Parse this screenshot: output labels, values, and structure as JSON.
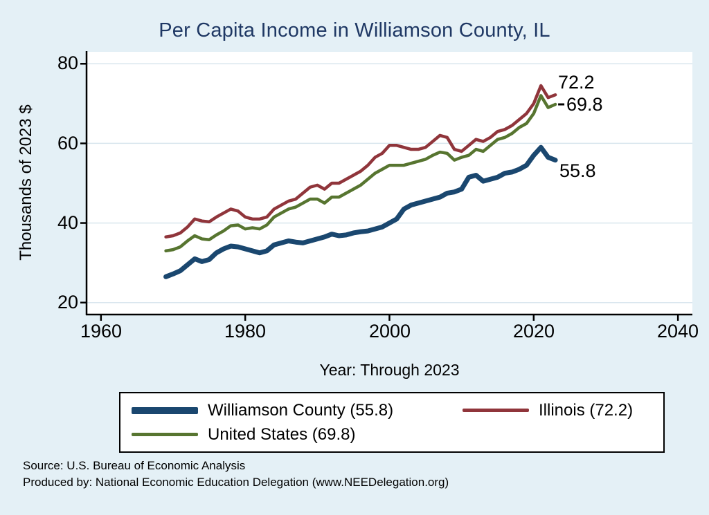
{
  "title": "Per Capita Income in Williamson County, IL",
  "axes": {
    "y_label": "Thousands of 2023 $",
    "x_label": "Year: Through 2023",
    "y_ticks": [
      "80",
      "60",
      "40",
      "20"
    ],
    "x_ticks": [
      "1960",
      "1980",
      "2000",
      "2020",
      "2040"
    ]
  },
  "end_labels": {
    "illinois": "72.2",
    "united_states": "69.8",
    "williamson": "55.8"
  },
  "legend": {
    "items": [
      {
        "id": "williamson",
        "label": "Williamson County (55.8)",
        "color": "#1a476f",
        "swatch_height": 10
      },
      {
        "id": "illinois",
        "label": "Illinois (72.2)",
        "color": "#90353b",
        "swatch_height": 5
      },
      {
        "id": "united_states",
        "label": "United States (69.8)",
        "color": "#577530",
        "swatch_height": 5
      }
    ]
  },
  "footer": {
    "source": "Source: U.S. Bureau of Economic Analysis",
    "produced_by": "Produced by: National Economic Education Delegation (www.NEEDelegation.org)"
  },
  "colors": {
    "background": "#e4f0f6",
    "plot_background": "#ffffff",
    "gridline": "#d9e6ee",
    "axis": "#000000",
    "title": "#1f3864",
    "williamson": "#1a476f",
    "illinois": "#90353b",
    "united_states": "#577530"
  },
  "chart_data": {
    "type": "line",
    "title": "Per Capita Income in Williamson County, IL",
    "xlabel": "Year: Through 2023",
    "ylabel": "Thousands of 2023 $",
    "xlim": [
      1958,
      2042
    ],
    "ylim": [
      17,
      83
    ],
    "x_ticks": [
      1960,
      1980,
      2000,
      2020,
      2040
    ],
    "y_ticks": [
      20,
      40,
      60,
      80
    ],
    "grid": "horizontal",
    "legend_position": "bottom",
    "x": [
      1969,
      1970,
      1971,
      1972,
      1973,
      1974,
      1975,
      1976,
      1977,
      1978,
      1979,
      1980,
      1981,
      1982,
      1983,
      1984,
      1985,
      1986,
      1987,
      1988,
      1989,
      1990,
      1991,
      1992,
      1993,
      1994,
      1995,
      1996,
      1997,
      1998,
      1999,
      2000,
      2001,
      2002,
      2003,
      2004,
      2005,
      2006,
      2007,
      2008,
      2009,
      2010,
      2011,
      2012,
      2013,
      2014,
      2015,
      2016,
      2017,
      2018,
      2019,
      2020,
      2021,
      2022,
      2023
    ],
    "series": [
      {
        "id": "illinois",
        "name": "Illinois",
        "color": "#90353b",
        "width": 4.5,
        "final_value": 72.2,
        "values": [
          36.5,
          36.8,
          37.5,
          39.0,
          41.0,
          40.5,
          40.3,
          41.5,
          42.5,
          43.5,
          43.0,
          41.5,
          41.0,
          41.0,
          41.5,
          43.5,
          44.5,
          45.5,
          46.0,
          47.5,
          49.0,
          49.5,
          48.5,
          50.0,
          50.0,
          51.0,
          52.0,
          53.0,
          54.5,
          56.5,
          57.5,
          59.5,
          59.5,
          59.0,
          58.5,
          58.5,
          59.0,
          60.5,
          62.0,
          61.5,
          58.5,
          58.0,
          59.5,
          61.0,
          60.5,
          61.5,
          63.0,
          63.5,
          64.5,
          66.0,
          67.5,
          70.0,
          74.5,
          71.5,
          72.2
        ]
      },
      {
        "id": "united_states",
        "name": "United States",
        "color": "#577530",
        "width": 4.5,
        "final_value": 69.8,
        "values": [
          33.0,
          33.3,
          34.0,
          35.5,
          36.8,
          36.0,
          35.8,
          37.0,
          38.0,
          39.3,
          39.5,
          38.5,
          38.8,
          38.5,
          39.5,
          41.5,
          42.5,
          43.5,
          44.0,
          45.0,
          46.0,
          46.0,
          45.0,
          46.5,
          46.5,
          47.5,
          48.5,
          49.5,
          51.0,
          52.5,
          53.5,
          54.5,
          54.5,
          54.5,
          55.0,
          55.5,
          56.0,
          57.0,
          57.8,
          57.5,
          55.8,
          56.5,
          57.0,
          58.5,
          58.0,
          59.5,
          61.0,
          61.5,
          62.5,
          64.0,
          65.0,
          67.5,
          72.0,
          69.0,
          69.8
        ]
      },
      {
        "id": "williamson",
        "name": "Williamson County",
        "color": "#1a476f",
        "width": 7,
        "final_value": 55.8,
        "values": [
          26.5,
          27.2,
          28.0,
          29.5,
          31.0,
          30.3,
          30.8,
          32.5,
          33.5,
          34.2,
          34.0,
          33.5,
          33.0,
          32.5,
          33.0,
          34.5,
          35.0,
          35.5,
          35.2,
          35.0,
          35.5,
          36.0,
          36.5,
          37.2,
          36.8,
          37.0,
          37.5,
          37.8,
          38.0,
          38.5,
          39.0,
          40.0,
          41.0,
          43.5,
          44.5,
          45.0,
          45.5,
          46.0,
          46.5,
          47.5,
          47.8,
          48.5,
          51.5,
          52.0,
          50.5,
          51.0,
          51.5,
          52.5,
          52.8,
          53.5,
          54.5,
          57.0,
          59.0,
          56.5,
          55.8
        ]
      }
    ]
  }
}
